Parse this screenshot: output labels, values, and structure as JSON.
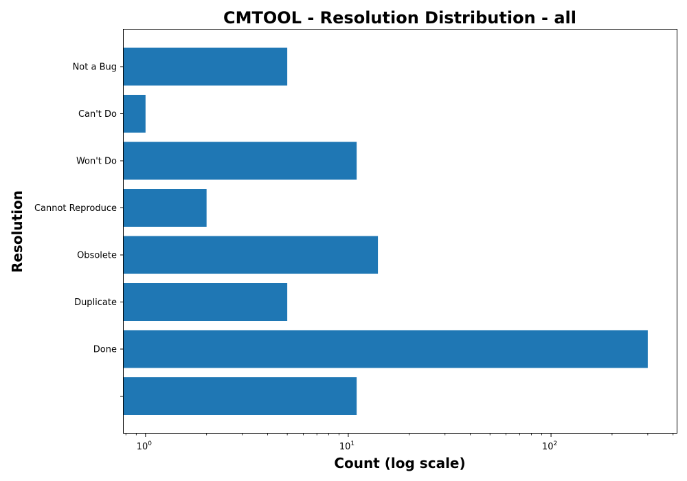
{
  "chart_data": {
    "type": "bar",
    "orientation": "horizontal",
    "title": "CMTOOL - Resolution Distribution - all",
    "xlabel": "Count (log scale)",
    "ylabel": "Resolution",
    "x_scale": "log",
    "xlim": [
      0.78,
      420
    ],
    "x_ticks": [
      {
        "value": 1,
        "base": "10",
        "exp": "0"
      },
      {
        "value": 10,
        "base": "10",
        "exp": "1"
      },
      {
        "value": 100,
        "base": "10",
        "exp": "2"
      }
    ],
    "categories": [
      "",
      "Done",
      "Duplicate",
      "Obsolete",
      "Cannot Reproduce",
      "Won't Do",
      "Can't Do",
      "Not a Bug"
    ],
    "values": [
      11,
      300,
      5,
      14,
      2,
      11,
      1,
      5
    ],
    "bar_color": "#1f77b4",
    "grid": false
  }
}
